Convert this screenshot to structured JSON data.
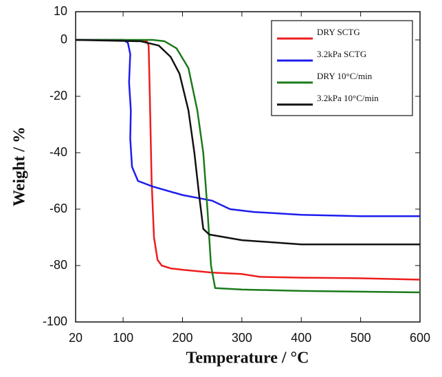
{
  "chart_data": {
    "type": "line",
    "xlabel": "Temperature / °C",
    "ylabel": "Weight / %",
    "xlim": [
      20,
      600
    ],
    "ylim": [
      -100,
      10
    ],
    "xticks": [
      20,
      100,
      200,
      300,
      400,
      500,
      600
    ],
    "yticks": [
      10,
      0,
      -20,
      -40,
      -60,
      -80,
      -100
    ],
    "legend": "upper right",
    "series": [
      {
        "name": "DRY SCTG",
        "color": "#ee1c1c",
        "x": [
          20,
          100,
          140,
          143,
          145,
          148,
          152,
          158,
          165,
          180,
          200,
          250,
          300,
          330,
          400,
          500,
          600
        ],
        "values": [
          0,
          0,
          -0.5,
          -2,
          -20,
          -50,
          -70,
          -78,
          -80,
          -81,
          -81.5,
          -82.5,
          -83,
          -84,
          -84.3,
          -84.5,
          -85
        ]
      },
      {
        "name": "3.2kPa SCTG",
        "color": "#1c1cee",
        "x": [
          20,
          100,
          108,
          112,
          110,
          113,
          112,
          115,
          125,
          150,
          200,
          250,
          280,
          320,
          400,
          500,
          600
        ],
        "values": [
          0,
          0,
          -1,
          -5,
          -15,
          -25,
          -35,
          -45,
          -50,
          -52,
          -55,
          -57,
          -60,
          -61,
          -62,
          -62.5,
          -62.5
        ]
      },
      {
        "name": "DRY 10°C/min",
        "color": "#1a7a1a",
        "x": [
          20,
          150,
          170,
          190,
          210,
          225,
          235,
          242,
          248,
          255,
          300,
          400,
          600
        ],
        "values": [
          0,
          0,
          -0.5,
          -3,
          -10,
          -25,
          -40,
          -60,
          -80,
          -88,
          -88.5,
          -89,
          -89.5
        ]
      },
      {
        "name": "3.2kPa 10°C/min",
        "color": "#111111",
        "x": [
          20,
          130,
          160,
          180,
          195,
          210,
          220,
          228,
          235,
          245,
          300,
          400,
          600
        ],
        "values": [
          0,
          -0.5,
          -2,
          -6,
          -12,
          -25,
          -40,
          -55,
          -67,
          -69,
          -71,
          -72.5,
          -72.5
        ]
      }
    ]
  }
}
